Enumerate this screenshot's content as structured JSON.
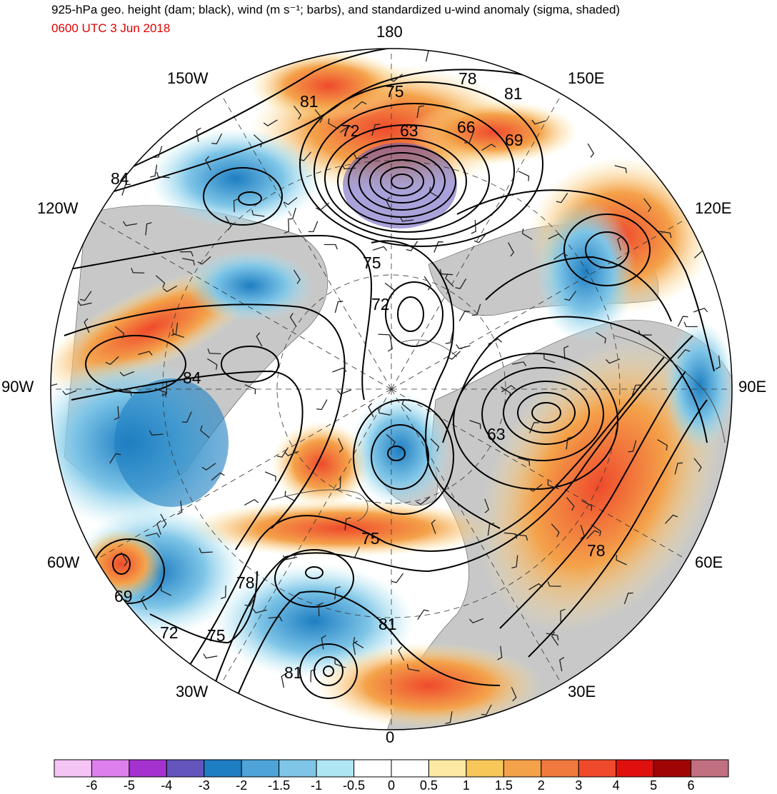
{
  "header": {
    "title": "925-hPa geo. height (dam; black), wind (m s⁻¹; barbs), and standardized u-wind anomaly (sigma, shaded)",
    "valid_time": "0600 UTC 3 Jun 2018"
  },
  "map": {
    "projection": "north polar stereographic",
    "longitude_labels": [
      {
        "text": "180",
        "lon": 180
      },
      {
        "text": "150E",
        "lon": 150
      },
      {
        "text": "120E",
        "lon": 120
      },
      {
        "text": "90E",
        "lon": 90
      },
      {
        "text": "60E",
        "lon": 60
      },
      {
        "text": "30E",
        "lon": 30
      },
      {
        "text": "0",
        "lon": 0
      },
      {
        "text": "30W",
        "lon": -30
      },
      {
        "text": "60W",
        "lon": -60
      },
      {
        "text": "90W",
        "lon": -90
      },
      {
        "text": "120W",
        "lon": -120
      },
      {
        "text": "150W",
        "lon": -150
      }
    ],
    "contour_labels": [
      "75",
      "78",
      "81",
      "72",
      "63",
      "66",
      "69",
      "84",
      "81",
      "75",
      "72",
      "84",
      "63",
      "75",
      "78",
      "69",
      "78",
      "72",
      "75",
      "81",
      "81"
    ]
  },
  "colorbar": {
    "tick_labels": [
      "-6",
      "-5",
      "-4",
      "-3",
      "-2",
      "-1.5",
      "-1",
      "-0.5",
      "0",
      "0.5",
      "1",
      "1.5",
      "2",
      "3",
      "4",
      "5",
      "6"
    ],
    "colors": [
      "#f4c4f4",
      "#dd80ee",
      "#a532cf",
      "#6355bc",
      "#1e7ec2",
      "#4ea4d8",
      "#7ec5e7",
      "#aee6f3",
      "#ffffff",
      "#ffffff",
      "#fde9a4",
      "#f8c75a",
      "#f4a24a",
      "#f07a3e",
      "#ef4a2c",
      "#e0100f",
      "#a00505",
      "#c07080"
    ]
  },
  "colors": {
    "land_gray": "#c8c8c8",
    "contour": "#000000",
    "subtitle_red": "#e00000"
  }
}
